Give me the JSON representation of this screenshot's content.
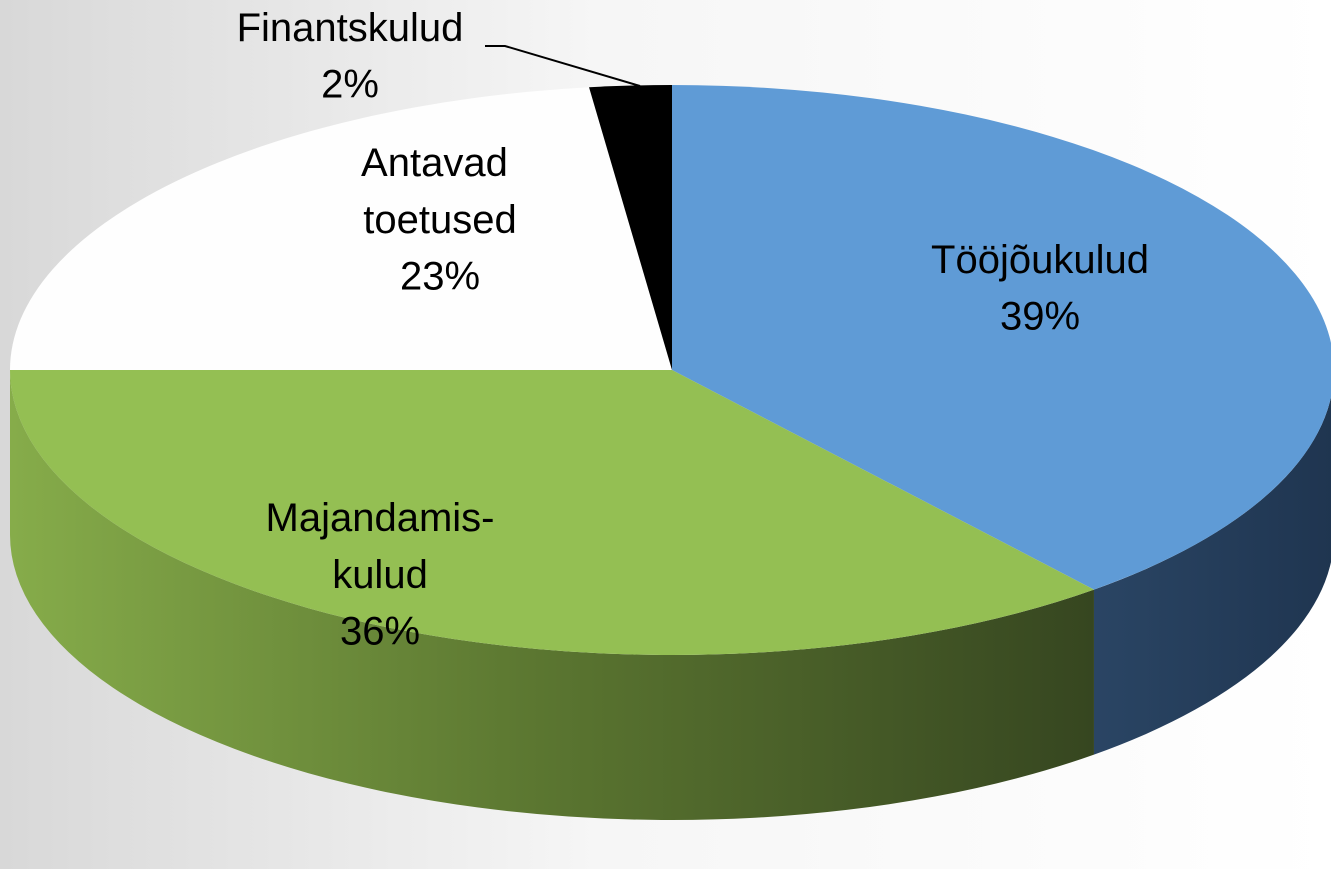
{
  "chart_data": {
    "type": "pie",
    "categories": [
      "Tööjõukulud",
      "Majandamis-kulud",
      "Antavad toetused",
      "Finantskulud"
    ],
    "values": [
      39,
      36,
      23,
      2
    ],
    "value_labels": [
      "39%",
      "36%",
      "23%",
      "2%"
    ],
    "colors": [
      "#5f9bd6",
      "#94bf53",
      "#fefefe",
      "#000000"
    ]
  }
}
